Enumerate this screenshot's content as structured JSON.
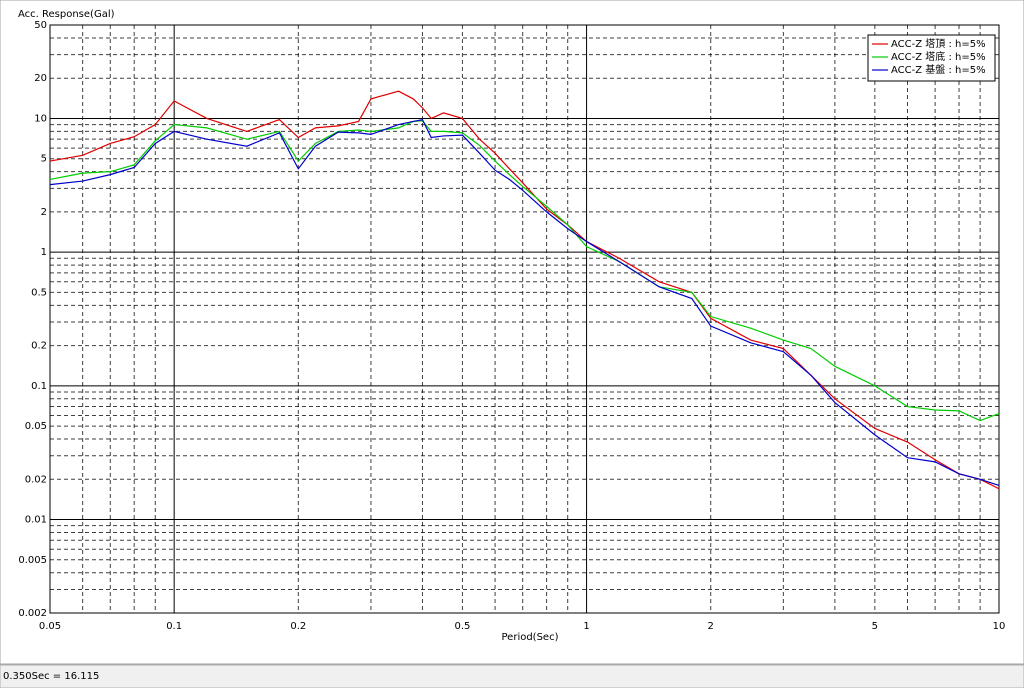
{
  "chart_data": {
    "type": "line",
    "y_label": "Acc. Response(Gal)",
    "x_label": "Period(Sec)",
    "x_scale": "log",
    "y_scale": "log",
    "xlim": [
      0.05,
      10
    ],
    "ylim": [
      0.002,
      50
    ],
    "xticks": [
      0.05,
      0.1,
      0.2,
      0.5,
      1,
      2,
      5,
      10
    ],
    "yticks": [
      0.002,
      0.005,
      0.01,
      0.02,
      0.05,
      0.1,
      0.2,
      0.5,
      1,
      2,
      5,
      10,
      20,
      50
    ],
    "xgrid": [
      0.05,
      0.06,
      0.07,
      0.08,
      0.09,
      0.1,
      0.2,
      0.3,
      0.4,
      0.5,
      0.6,
      0.7,
      0.8,
      0.9,
      1,
      2,
      3,
      4,
      5,
      6,
      7,
      8,
      9,
      10
    ],
    "ygrid": [
      0.002,
      0.003,
      0.004,
      0.005,
      0.006,
      0.007,
      0.008,
      0.009,
      0.01,
      0.02,
      0.03,
      0.04,
      0.05,
      0.06,
      0.07,
      0.08,
      0.09,
      0.1,
      0.2,
      0.3,
      0.4,
      0.5,
      0.6,
      0.7,
      0.8,
      0.9,
      1,
      2,
      3,
      4,
      5,
      6,
      7,
      8,
      9,
      10,
      20,
      30,
      40,
      50
    ],
    "legend": "upper right",
    "x": [
      0.05,
      0.06,
      0.07,
      0.08,
      0.09,
      0.1,
      0.12,
      0.15,
      0.18,
      0.2,
      0.22,
      0.25,
      0.28,
      0.3,
      0.35,
      0.38,
      0.4,
      0.42,
      0.45,
      0.5,
      0.55,
      0.6,
      0.65,
      0.7,
      0.8,
      0.9,
      1,
      1.2,
      1.5,
      1.8,
      2,
      2.5,
      3,
      3.5,
      4,
      5,
      6,
      7,
      8,
      9,
      10
    ],
    "series": [
      {
        "name": "ACC-Z 塔頂 : h=5%",
        "color": "#e00000",
        "values": [
          4.8,
          5.3,
          6.5,
          7.3,
          9,
          13.5,
          10,
          8,
          9.8,
          7.2,
          8.5,
          8.8,
          9.5,
          14,
          16,
          14,
          12,
          10,
          11,
          10,
          7,
          5.5,
          4.2,
          3.3,
          2.1,
          1.6,
          1.2,
          0.9,
          0.6,
          0.5,
          0.32,
          0.22,
          0.19,
          0.12,
          0.08,
          0.048,
          0.038,
          0.028,
          0.022,
          0.02,
          0.017
        ]
      },
      {
        "name": "ACC-Z 塔底 : h=5%",
        "color": "#00cc00",
        "values": [
          3.5,
          3.9,
          4.0,
          4.5,
          6.8,
          9,
          8.5,
          7,
          8,
          4.8,
          6.5,
          8,
          8.2,
          8.0,
          8.5,
          9.5,
          9.6,
          8.0,
          8.0,
          7.8,
          6.3,
          4.8,
          3.8,
          3.1,
          2.2,
          1.6,
          1.1,
          0.85,
          0.55,
          0.5,
          0.33,
          0.27,
          0.22,
          0.19,
          0.14,
          0.1,
          0.07,
          0.066,
          0.065,
          0.055,
          0.062
        ]
      },
      {
        "name": "ACC-Z 基盤 : h=5%",
        "color": "#0000cc",
        "values": [
          3.2,
          3.4,
          3.8,
          4.3,
          6.5,
          8,
          7,
          6.2,
          7.8,
          4.2,
          6.2,
          7.9,
          7.8,
          7.6,
          9,
          9.5,
          9.8,
          7.2,
          7.4,
          7.5,
          5.5,
          4.1,
          3.5,
          2.9,
          2.0,
          1.5,
          1.2,
          0.85,
          0.55,
          0.45,
          0.28,
          0.21,
          0.18,
          0.12,
          0.075,
          0.043,
          0.029,
          0.027,
          0.022,
          0.02,
          0.018
        ]
      }
    ]
  },
  "status_bar": "0.350Sec = 16.115"
}
